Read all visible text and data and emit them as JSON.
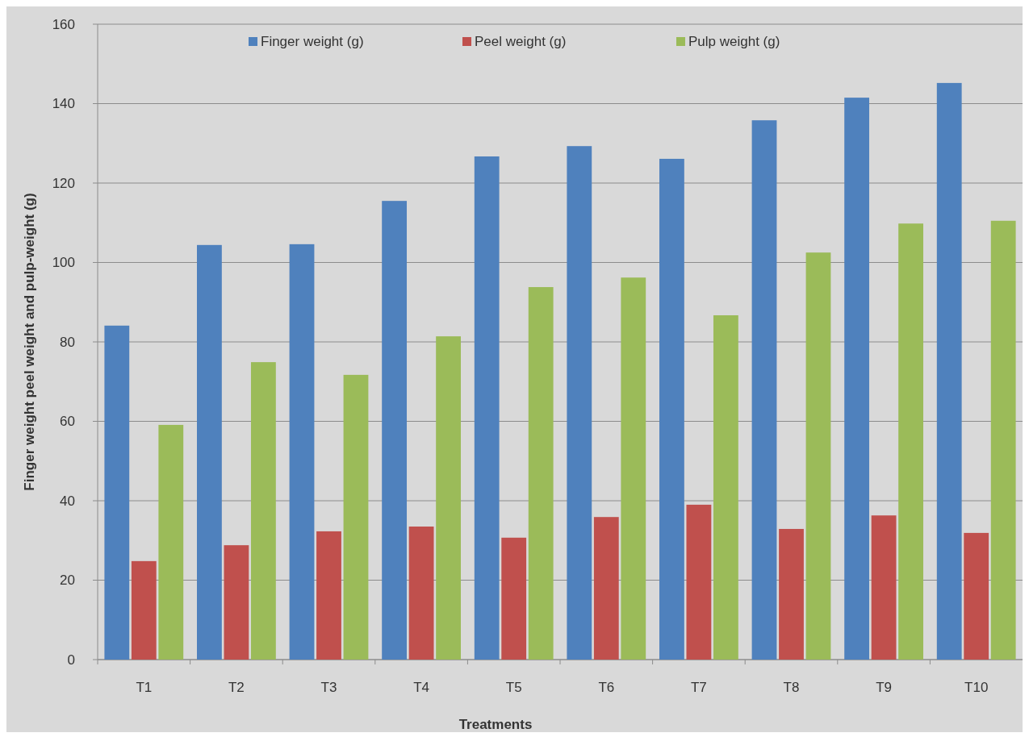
{
  "chart_data": {
    "type": "bar",
    "xlabel": "Treatments",
    "ylabel": "Finger weight peel weight and pulp-weight (g)",
    "categories": [
      "T1",
      "T2",
      "T3",
      "T4",
      "T5",
      "T6",
      "T7",
      "T8",
      "T9",
      "T10"
    ],
    "series": [
      {
        "name": "Finger weight (g)",
        "color": "#4f81bd",
        "values": [
          84.1,
          104.4,
          104.6,
          115.5,
          126.7,
          129.3,
          126.1,
          135.8,
          141.5,
          145.2
        ]
      },
      {
        "name": "Peel weight (g)",
        "color": "#c0504d",
        "values": [
          24.8,
          28.8,
          32.3,
          33.5,
          30.7,
          35.9,
          39.0,
          32.9,
          36.3,
          31.9
        ]
      },
      {
        "name": "Pulp weight (g)",
        "color": "#9bbb59",
        "values": [
          59.1,
          74.9,
          71.7,
          81.4,
          93.8,
          96.2,
          86.7,
          102.5,
          109.8,
          110.5
        ]
      }
    ],
    "ylim": [
      0,
      160
    ],
    "yticks": [
      0,
      20,
      40,
      60,
      80,
      100,
      120,
      140,
      160
    ],
    "grid": "y",
    "legend": "top"
  }
}
